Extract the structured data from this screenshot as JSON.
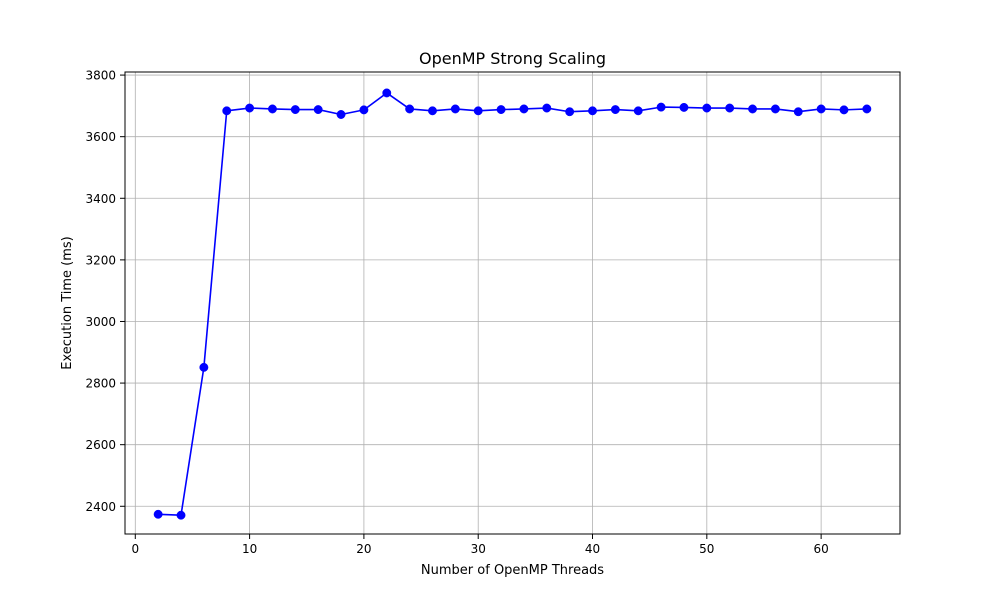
{
  "chart_data": {
    "type": "line",
    "title": "OpenMP Strong Scaling",
    "xlabel": "Number of OpenMP Threads",
    "ylabel": "Execution Time (ms)",
    "xlim": [
      -0.9,
      66.9
    ],
    "ylim": [
      2310,
      3810
    ],
    "xticks": [
      0,
      10,
      20,
      30,
      40,
      50,
      60
    ],
    "yticks": [
      2400,
      2600,
      2800,
      3000,
      3200,
      3400,
      3600,
      3800
    ],
    "grid": true,
    "series": [
      {
        "color": "#0000ff",
        "marker": "circle",
        "x": [
          2,
          4,
          6,
          8,
          10,
          12,
          14,
          16,
          18,
          20,
          22,
          24,
          26,
          28,
          30,
          32,
          34,
          36,
          38,
          40,
          42,
          44,
          46,
          48,
          50,
          52,
          54,
          56,
          58,
          60,
          62,
          64
        ],
        "y": [
          2374,
          2371,
          2851,
          3684,
          3693,
          3690,
          3688,
          3688,
          3672,
          3687,
          3742,
          3690,
          3684,
          3690,
          3684,
          3688,
          3690,
          3693,
          3681,
          3684,
          3688,
          3684,
          3696,
          3695,
          3693,
          3693,
          3690,
          3690,
          3681,
          3690,
          3687,
          3690
        ]
      }
    ]
  }
}
